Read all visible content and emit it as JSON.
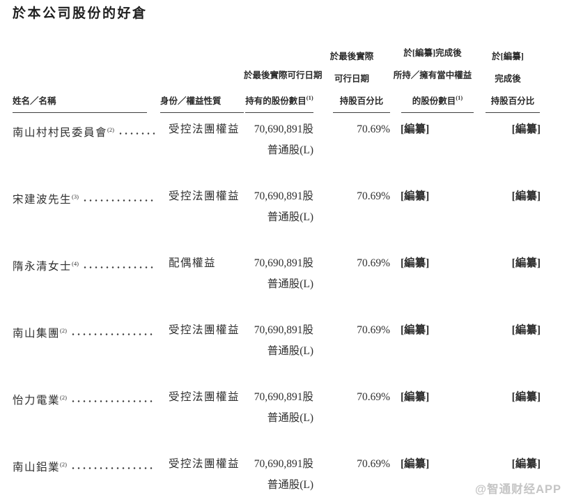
{
  "page": {
    "title": "於本公司股份的好倉",
    "watermark": "@智通财经APP"
  },
  "table": {
    "headers": {
      "name": "姓名／名稱",
      "capacity": "身份／權益性質",
      "shares_line1": "於最後實際可行日期",
      "shares_line2": "持有的股份數目",
      "shares_note": "(1)",
      "pct_line1": "於最後實際",
      "pct_line2": "可行日期",
      "pct_line3": "持股百分比",
      "post_shares_line1": "於[編纂]完成後",
      "post_shares_line2": "所持／擁有當中權益",
      "post_shares_line3": "的股份數目",
      "post_shares_note": "(1)",
      "post_pct_line1": "於[編纂]",
      "post_pct_line2": "完成後",
      "post_pct_line3": "持股百分比"
    },
    "rows": [
      {
        "name": "南山村村民委員會",
        "note": "(2)",
        "capacity": "受控法團權益",
        "shares": "70,690,891股",
        "share_class": "普通股(L)",
        "pct": "70.69%",
        "post_shares": "[編纂]",
        "post_pct": "[編纂]"
      },
      {
        "name": "宋建波先生",
        "note": "(3)",
        "capacity": "受控法團權益",
        "shares": "70,690,891股",
        "share_class": "普通股(L)",
        "pct": "70.69%",
        "post_shares": "[編纂]",
        "post_pct": "[編纂]"
      },
      {
        "name": "隋永清女士",
        "note": "(4)",
        "capacity": "配偶權益",
        "shares": "70,690,891股",
        "share_class": "普通股(L)",
        "pct": "70.69%",
        "post_shares": "[編纂]",
        "post_pct": "[編纂]"
      },
      {
        "name": "南山集團",
        "note": "(2)",
        "capacity": "受控法團權益",
        "shares": "70,690,891股",
        "share_class": "普通股(L)",
        "pct": "70.69%",
        "post_shares": "[編纂]",
        "post_pct": "[編纂]"
      },
      {
        "name": "怡力電業",
        "note": "(2)",
        "capacity": "受控法團權益",
        "shares": "70,690,891股",
        "share_class": "普通股(L)",
        "pct": "70.69%",
        "post_shares": "[編纂]",
        "post_pct": "[編纂]"
      },
      {
        "name": "南山鋁業",
        "note": "(2)",
        "capacity": "受控法團權益",
        "shares": "70,690,891股",
        "share_class": "普通股(L)",
        "pct": "70.69%",
        "post_shares": "[編纂]",
        "post_pct": "[編纂]"
      }
    ]
  },
  "colors": {
    "text": "#2f2f2f",
    "rule": "#3d3d3d",
    "watermark_gray": "#969696",
    "background": "#ffffff"
  }
}
